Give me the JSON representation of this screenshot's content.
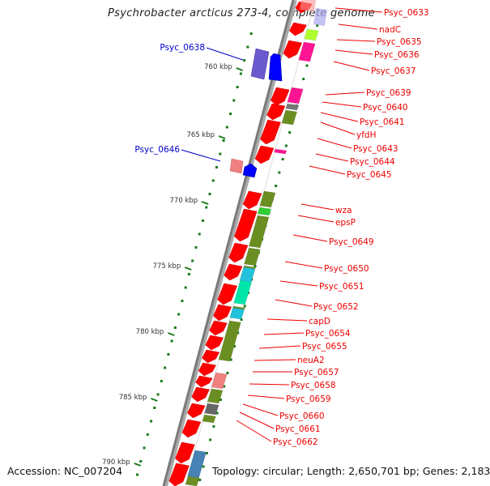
{
  "title": "Psychrobacter arcticus 273-4, complete genome",
  "footer": {
    "accession": "Accession: NC_007204",
    "summary": "Topology: circular; Length: 2,650,701 bp; Genes: 2,183"
  },
  "colors": {
    "forward_label": "#ee0000",
    "reverse_label": "#0000cc",
    "backbone": "#8c8c8c",
    "cds": "#ff0000",
    "tick": "#1a7a1a"
  },
  "scale": {
    "unit": "kbp",
    "ticks": [
      {
        "label": "760 kbp",
        "value": 760
      },
      {
        "label": "765 kbp",
        "value": 765
      },
      {
        "label": "770 kbp",
        "value": 770
      },
      {
        "label": "775 kbp",
        "value": 775
      },
      {
        "label": "780 kbp",
        "value": 780
      },
      {
        "label": "785 kbp",
        "value": 785
      },
      {
        "label": "790 kbp",
        "value": 790
      }
    ]
  },
  "outer_labels": [
    {
      "name": "Psyc_0638",
      "strand": "reverse",
      "color": "#0000cc"
    },
    {
      "name": "Psyc_0646",
      "strand": "reverse",
      "color": "#0000cc"
    }
  ],
  "inner_labels": [
    {
      "name": "Psyc_0633",
      "color": "#ee0000"
    },
    {
      "name": "nadC",
      "color": "#ee0000"
    },
    {
      "name": "Psyc_0635",
      "color": "#ee0000"
    },
    {
      "name": "Psyc_0636",
      "color": "#ee0000"
    },
    {
      "name": "Psyc_0637",
      "color": "#ee0000"
    },
    {
      "name": "Psyc_0639",
      "color": "#ee0000"
    },
    {
      "name": "Psyc_0640",
      "color": "#ee0000"
    },
    {
      "name": "Psyc_0641",
      "color": "#ee0000"
    },
    {
      "name": "yfdH",
      "color": "#ee0000"
    },
    {
      "name": "Psyc_0643",
      "color": "#ee0000"
    },
    {
      "name": "Psyc_0644",
      "color": "#ee0000"
    },
    {
      "name": "Psyc_0645",
      "color": "#ee0000"
    },
    {
      "name": "wza",
      "color": "#ee0000"
    },
    {
      "name": "epsP",
      "color": "#ee0000"
    },
    {
      "name": "Psyc_0649",
      "color": "#ee0000"
    },
    {
      "name": "Psyc_0650",
      "color": "#ee0000"
    },
    {
      "name": "Psyc_0651",
      "color": "#ee0000"
    },
    {
      "name": "Psyc_0652",
      "color": "#ee0000"
    },
    {
      "name": "capD",
      "color": "#ee0000"
    },
    {
      "name": "Psyc_0654",
      "color": "#ee0000"
    },
    {
      "name": "Psyc_0655",
      "color": "#ee0000"
    },
    {
      "name": "neuA2",
      "color": "#ee0000"
    },
    {
      "name": "Psyc_0657",
      "color": "#ee0000"
    },
    {
      "name": "Psyc_0658",
      "color": "#ee0000"
    },
    {
      "name": "Psyc_0659",
      "color": "#ee0000"
    },
    {
      "name": "Psyc_0660",
      "color": "#ee0000"
    },
    {
      "name": "Psyc_0661",
      "color": "#ee0000"
    },
    {
      "name": "Psyc_0662",
      "color": "#ee0000"
    }
  ],
  "cog_colors": [
    "#6b8e23",
    "#ff1493",
    "#adff2f",
    "#00e5aa",
    "#22c1dd",
    "#f08080",
    "#666666",
    "#4682b4",
    "#32cd32",
    "#7b68ee",
    "#0000ff"
  ]
}
